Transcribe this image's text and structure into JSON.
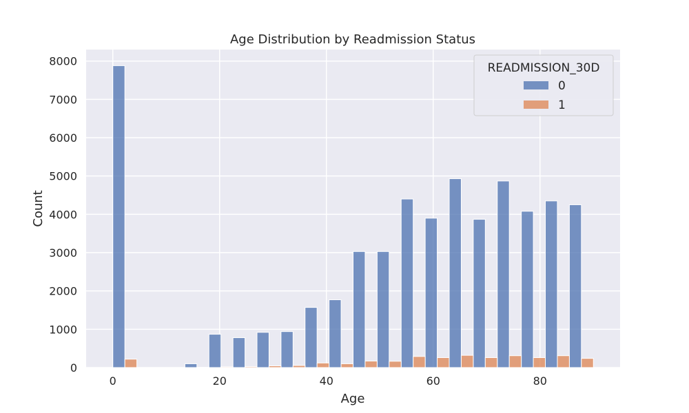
{
  "chart_data": {
    "type": "bar",
    "title": "Age Distribution by Readmission Status",
    "xlabel": "Age",
    "ylabel": "Count",
    "xlim": [
      -5,
      95
    ],
    "ylim": [
      0,
      8300
    ],
    "x_ticks": [
      0,
      20,
      40,
      60,
      80
    ],
    "y_ticks": [
      0,
      1000,
      2000,
      3000,
      4000,
      5000,
      6000,
      7000,
      8000
    ],
    "grid": true,
    "legend": {
      "title": "READMISSION_30D",
      "placement": "top-right"
    },
    "bin_edges": [
      0,
      4.5,
      9,
      13.5,
      18,
      22.5,
      27,
      31.5,
      36,
      40.5,
      45,
      49.5,
      54,
      58.5,
      63,
      67.5,
      72,
      76.5,
      81,
      85.5,
      90
    ],
    "series": [
      {
        "name": "0",
        "color": "#4c72b0",
        "values": [
          7880,
          0,
          0,
          100,
          870,
          780,
          920,
          940,
          1570,
          1770,
          3030,
          3030,
          4400,
          3900,
          4930,
          3870,
          4870,
          4080,
          4350,
          4250
        ]
      },
      {
        "name": "1",
        "color": "#dd8452",
        "values": [
          220,
          0,
          0,
          5,
          20,
          25,
          45,
          55,
          120,
          100,
          170,
          165,
          290,
          260,
          320,
          260,
          310,
          260,
          310,
          240
        ]
      }
    ]
  }
}
